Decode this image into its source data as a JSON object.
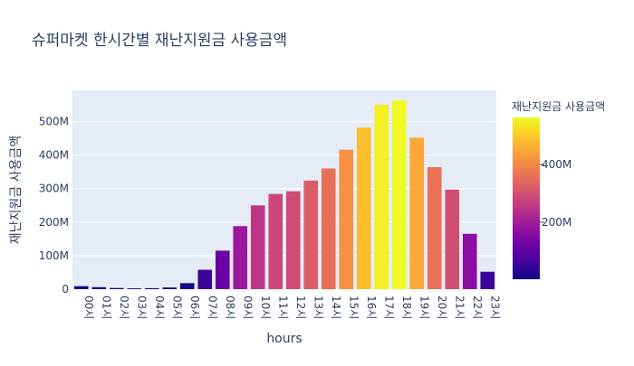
{
  "chart_data": {
    "type": "bar",
    "title": "슈퍼마켓 한시간별 재난지원금 사용금액",
    "xlabel": "hours",
    "ylabel": "재난지원금 사용금액",
    "categories": [
      "00시",
      "01시",
      "02시",
      "03시",
      "04시",
      "05시",
      "06시",
      "07시",
      "08시",
      "09시",
      "10시",
      "11시",
      "12시",
      "13시",
      "14시",
      "15시",
      "16시",
      "17시",
      "18시",
      "19시",
      "20시",
      "21시",
      "22시",
      "23시"
    ],
    "values": [
      9000000,
      6000000,
      3500000,
      2500000,
      3000000,
      5000000,
      18000000,
      58000000,
      115000000,
      188000000,
      250000000,
      284000000,
      292000000,
      324000000,
      360000000,
      416000000,
      482000000,
      550000000,
      563000000,
      452000000,
      364000000,
      297000000,
      165000000,
      52000000
    ],
    "yticks": [
      0,
      100000000,
      200000000,
      300000000,
      400000000,
      500000000
    ],
    "ytick_labels": [
      "0",
      "100M",
      "200M",
      "300M",
      "400M",
      "500M"
    ],
    "ylim": [
      0,
      593000000
    ],
    "grid": true,
    "colorbar": {
      "title": "재난지원금 사용금액",
      "min": 2500000,
      "max": 563000000,
      "ticks": [
        200000000,
        400000000
      ],
      "tick_labels": [
        "200M",
        "400M"
      ],
      "colors": [
        "#0d0887",
        "#46039f",
        "#7201a8",
        "#9c179e",
        "#bd3786",
        "#d8576b",
        "#ed7953",
        "#fb9f3a",
        "#fdca26",
        "#f0f921"
      ]
    },
    "plot_bg": "#e5ecf6"
  }
}
